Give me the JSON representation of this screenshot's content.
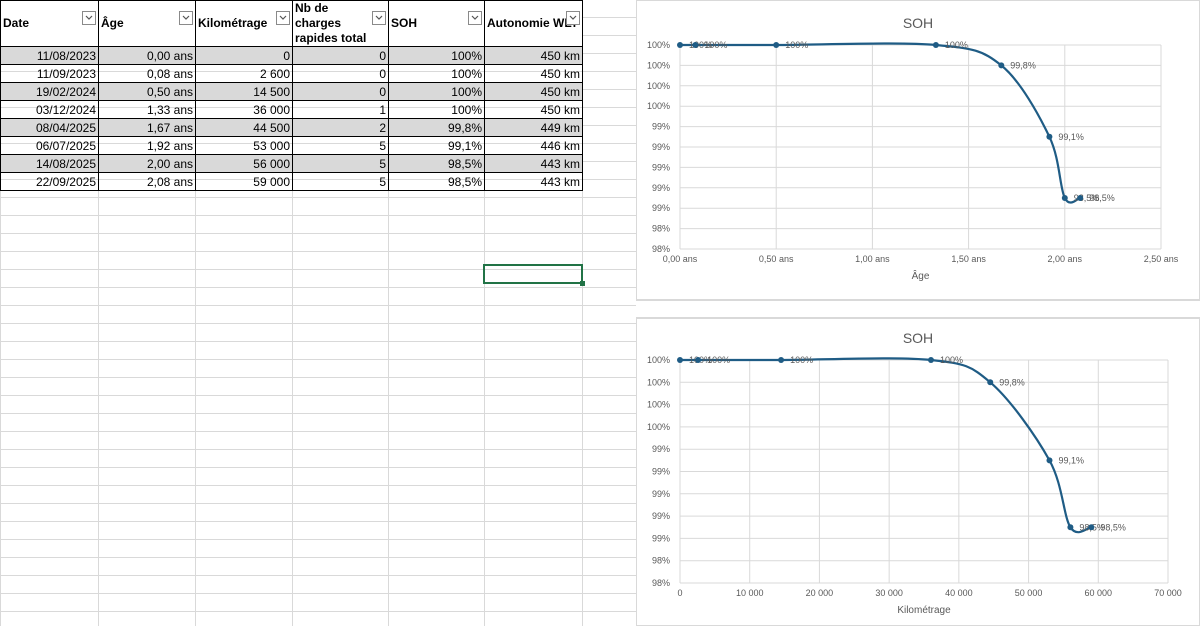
{
  "sheet": {
    "headers": [
      {
        "label": "Date"
      },
      {
        "label": "Âge"
      },
      {
        "label": "Kilométrage"
      },
      {
        "label": "Nb de charges rapides total"
      },
      {
        "label": "SOH"
      },
      {
        "label": "Autonomie WLT"
      }
    ],
    "rows": [
      [
        "11/08/2023",
        "0,00 ans",
        "0",
        "0",
        "100%",
        "450 km"
      ],
      [
        "11/09/2023",
        "0,08 ans",
        "2 600",
        "0",
        "100%",
        "450 km"
      ],
      [
        "19/02/2024",
        "0,50 ans",
        "14 500",
        "0",
        "100%",
        "450 km"
      ],
      [
        "03/12/2024",
        "1,33 ans",
        "36 000",
        "1",
        "100%",
        "450 km"
      ],
      [
        "08/04/2025",
        "1,67 ans",
        "44 500",
        "2",
        "99,8%",
        "449 km"
      ],
      [
        "06/07/2025",
        "1,92 ans",
        "53 000",
        "5",
        "99,1%",
        "446 km"
      ],
      [
        "14/08/2025",
        "2,00 ans",
        "56 000",
        "5",
        "98,5%",
        "443 km"
      ],
      [
        "22/09/2025",
        "2,08 ans",
        "59 000",
        "5",
        "98,5%",
        "443 km"
      ]
    ],
    "filter_icon": "dropdown-arrow-icon",
    "band_color": "#d9d9d9",
    "selection_color": "#217346"
  },
  "chart_data": [
    {
      "type": "scatter",
      "title": "SOH",
      "xlabel": "Âge",
      "ylabel": "",
      "xlim": [
        0,
        2.5
      ],
      "ylim": [
        98.0,
        100.0
      ],
      "x_ticks": [
        "0,00 ans",
        "0,50 ans",
        "1,00 ans",
        "1,50 ans",
        "2,00 ans",
        "2,50 ans"
      ],
      "y_ticks": [
        "98%",
        "98%",
        "99%",
        "99%",
        "99%",
        "99%",
        "99%",
        "100%",
        "100%",
        "100%",
        "100%"
      ],
      "x": [
        0.0,
        0.08,
        0.5,
        1.33,
        1.67,
        1.92,
        2.0,
        2.08
      ],
      "y": [
        100.0,
        100.0,
        100.0,
        100.0,
        99.8,
        99.1,
        98.5,
        98.5
      ],
      "data_labels": [
        "100%",
        "100%",
        "100%",
        "100%",
        "99,8%",
        "99,1%",
        "98,5%",
        "98,5%"
      ],
      "smooth_line": true,
      "grid": true,
      "color": "#1f5c85"
    },
    {
      "type": "scatter",
      "title": "SOH",
      "xlabel": "Kilométrage",
      "ylabel": "",
      "xlim": [
        0,
        70000
      ],
      "ylim": [
        98.0,
        100.0
      ],
      "x_ticks": [
        "0",
        "10 000",
        "20 000",
        "30 000",
        "40 000",
        "50 000",
        "60 000",
        "70 000"
      ],
      "y_ticks": [
        "98%",
        "98%",
        "99%",
        "99%",
        "99%",
        "99%",
        "99%",
        "100%",
        "100%",
        "100%",
        "100%"
      ],
      "x": [
        0,
        2600,
        14500,
        36000,
        44500,
        53000,
        56000,
        59000
      ],
      "y": [
        100.0,
        100.0,
        100.0,
        100.0,
        99.8,
        99.1,
        98.5,
        98.5
      ],
      "data_labels": [
        "100%",
        "100%",
        "100%",
        "100%",
        "99,8%",
        "99,1%",
        "98,5%",
        "98,5%"
      ],
      "smooth_line": true,
      "grid": true,
      "color": "#1f5c85"
    }
  ]
}
